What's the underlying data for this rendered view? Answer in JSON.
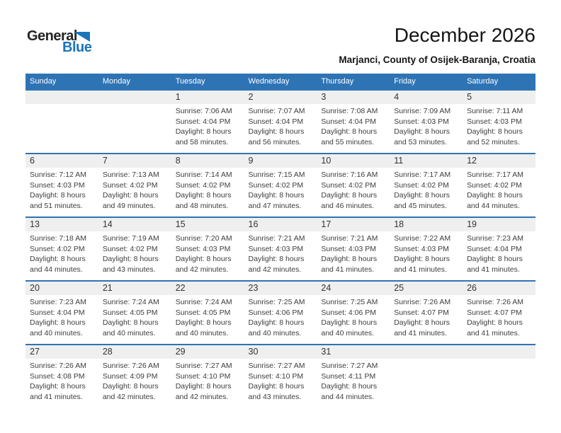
{
  "logo": {
    "general": "General",
    "blue": "Blue"
  },
  "header": {
    "title": "December 2026",
    "subtitle": "Marjanci, County of Osijek-Baranja, Croatia"
  },
  "colors": {
    "header_blue": "#2E74B5",
    "logo_blue": "#1B75BC",
    "band_gray": "#EFEFEF"
  },
  "weekdays": [
    "Sunday",
    "Monday",
    "Tuesday",
    "Wednesday",
    "Thursday",
    "Friday",
    "Saturday"
  ],
  "weeks": [
    [
      {},
      {},
      {
        "day": "1",
        "sunrise": "Sunrise: 7:06 AM",
        "sunset": "Sunset: 4:04 PM",
        "daylight1": "Daylight: 8 hours",
        "daylight2": "and 58 minutes."
      },
      {
        "day": "2",
        "sunrise": "Sunrise: 7:07 AM",
        "sunset": "Sunset: 4:04 PM",
        "daylight1": "Daylight: 8 hours",
        "daylight2": "and 56 minutes."
      },
      {
        "day": "3",
        "sunrise": "Sunrise: 7:08 AM",
        "sunset": "Sunset: 4:04 PM",
        "daylight1": "Daylight: 8 hours",
        "daylight2": "and 55 minutes."
      },
      {
        "day": "4",
        "sunrise": "Sunrise: 7:09 AM",
        "sunset": "Sunset: 4:03 PM",
        "daylight1": "Daylight: 8 hours",
        "daylight2": "and 53 minutes."
      },
      {
        "day": "5",
        "sunrise": "Sunrise: 7:11 AM",
        "sunset": "Sunset: 4:03 PM",
        "daylight1": "Daylight: 8 hours",
        "daylight2": "and 52 minutes."
      }
    ],
    [
      {
        "day": "6",
        "sunrise": "Sunrise: 7:12 AM",
        "sunset": "Sunset: 4:03 PM",
        "daylight1": "Daylight: 8 hours",
        "daylight2": "and 51 minutes."
      },
      {
        "day": "7",
        "sunrise": "Sunrise: 7:13 AM",
        "sunset": "Sunset: 4:02 PM",
        "daylight1": "Daylight: 8 hours",
        "daylight2": "and 49 minutes."
      },
      {
        "day": "8",
        "sunrise": "Sunrise: 7:14 AM",
        "sunset": "Sunset: 4:02 PM",
        "daylight1": "Daylight: 8 hours",
        "daylight2": "and 48 minutes."
      },
      {
        "day": "9",
        "sunrise": "Sunrise: 7:15 AM",
        "sunset": "Sunset: 4:02 PM",
        "daylight1": "Daylight: 8 hours",
        "daylight2": "and 47 minutes."
      },
      {
        "day": "10",
        "sunrise": "Sunrise: 7:16 AM",
        "sunset": "Sunset: 4:02 PM",
        "daylight1": "Daylight: 8 hours",
        "daylight2": "and 46 minutes."
      },
      {
        "day": "11",
        "sunrise": "Sunrise: 7:17 AM",
        "sunset": "Sunset: 4:02 PM",
        "daylight1": "Daylight: 8 hours",
        "daylight2": "and 45 minutes."
      },
      {
        "day": "12",
        "sunrise": "Sunrise: 7:17 AM",
        "sunset": "Sunset: 4:02 PM",
        "daylight1": "Daylight: 8 hours",
        "daylight2": "and 44 minutes."
      }
    ],
    [
      {
        "day": "13",
        "sunrise": "Sunrise: 7:18 AM",
        "sunset": "Sunset: 4:02 PM",
        "daylight1": "Daylight: 8 hours",
        "daylight2": "and 44 minutes."
      },
      {
        "day": "14",
        "sunrise": "Sunrise: 7:19 AM",
        "sunset": "Sunset: 4:02 PM",
        "daylight1": "Daylight: 8 hours",
        "daylight2": "and 43 minutes."
      },
      {
        "day": "15",
        "sunrise": "Sunrise: 7:20 AM",
        "sunset": "Sunset: 4:03 PM",
        "daylight1": "Daylight: 8 hours",
        "daylight2": "and 42 minutes."
      },
      {
        "day": "16",
        "sunrise": "Sunrise: 7:21 AM",
        "sunset": "Sunset: 4:03 PM",
        "daylight1": "Daylight: 8 hours",
        "daylight2": "and 42 minutes."
      },
      {
        "day": "17",
        "sunrise": "Sunrise: 7:21 AM",
        "sunset": "Sunset: 4:03 PM",
        "daylight1": "Daylight: 8 hours",
        "daylight2": "and 41 minutes."
      },
      {
        "day": "18",
        "sunrise": "Sunrise: 7:22 AM",
        "sunset": "Sunset: 4:03 PM",
        "daylight1": "Daylight: 8 hours",
        "daylight2": "and 41 minutes."
      },
      {
        "day": "19",
        "sunrise": "Sunrise: 7:23 AM",
        "sunset": "Sunset: 4:04 PM",
        "daylight1": "Daylight: 8 hours",
        "daylight2": "and 41 minutes."
      }
    ],
    [
      {
        "day": "20",
        "sunrise": "Sunrise: 7:23 AM",
        "sunset": "Sunset: 4:04 PM",
        "daylight1": "Daylight: 8 hours",
        "daylight2": "and 40 minutes."
      },
      {
        "day": "21",
        "sunrise": "Sunrise: 7:24 AM",
        "sunset": "Sunset: 4:05 PM",
        "daylight1": "Daylight: 8 hours",
        "daylight2": "and 40 minutes."
      },
      {
        "day": "22",
        "sunrise": "Sunrise: 7:24 AM",
        "sunset": "Sunset: 4:05 PM",
        "daylight1": "Daylight: 8 hours",
        "daylight2": "and 40 minutes."
      },
      {
        "day": "23",
        "sunrise": "Sunrise: 7:25 AM",
        "sunset": "Sunset: 4:06 PM",
        "daylight1": "Daylight: 8 hours",
        "daylight2": "and 40 minutes."
      },
      {
        "day": "24",
        "sunrise": "Sunrise: 7:25 AM",
        "sunset": "Sunset: 4:06 PM",
        "daylight1": "Daylight: 8 hours",
        "daylight2": "and 40 minutes."
      },
      {
        "day": "25",
        "sunrise": "Sunrise: 7:26 AM",
        "sunset": "Sunset: 4:07 PM",
        "daylight1": "Daylight: 8 hours",
        "daylight2": "and 41 minutes."
      },
      {
        "day": "26",
        "sunrise": "Sunrise: 7:26 AM",
        "sunset": "Sunset: 4:07 PM",
        "daylight1": "Daylight: 8 hours",
        "daylight2": "and 41 minutes."
      }
    ],
    [
      {
        "day": "27",
        "sunrise": "Sunrise: 7:26 AM",
        "sunset": "Sunset: 4:08 PM",
        "daylight1": "Daylight: 8 hours",
        "daylight2": "and 41 minutes."
      },
      {
        "day": "28",
        "sunrise": "Sunrise: 7:26 AM",
        "sunset": "Sunset: 4:09 PM",
        "daylight1": "Daylight: 8 hours",
        "daylight2": "and 42 minutes."
      },
      {
        "day": "29",
        "sunrise": "Sunrise: 7:27 AM",
        "sunset": "Sunset: 4:10 PM",
        "daylight1": "Daylight: 8 hours",
        "daylight2": "and 42 minutes."
      },
      {
        "day": "30",
        "sunrise": "Sunrise: 7:27 AM",
        "sunset": "Sunset: 4:10 PM",
        "daylight1": "Daylight: 8 hours",
        "daylight2": "and 43 minutes."
      },
      {
        "day": "31",
        "sunrise": "Sunrise: 7:27 AM",
        "sunset": "Sunset: 4:11 PM",
        "daylight1": "Daylight: 8 hours",
        "daylight2": "and 44 minutes."
      },
      {},
      {}
    ]
  ]
}
